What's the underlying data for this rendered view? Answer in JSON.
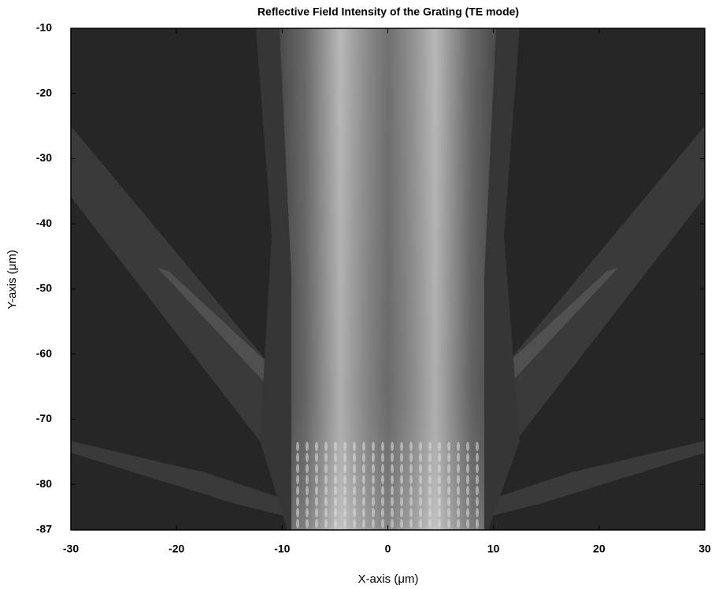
{
  "chart_data": {
    "type": "image",
    "title": "Reflective Field Intensity of the Grating (TE mode)",
    "x_label": "X-axis (μm)",
    "y_label": "Y-axis (μm)",
    "xlim": [
      -30,
      30
    ],
    "xticks": [
      -30,
      -20,
      -10,
      0,
      10,
      20,
      30
    ],
    "ylim": [
      -87,
      -10
    ],
    "yticks": [
      -10,
      -20,
      -30,
      -40,
      -50,
      -60,
      -70,
      -80,
      -87
    ]
  }
}
